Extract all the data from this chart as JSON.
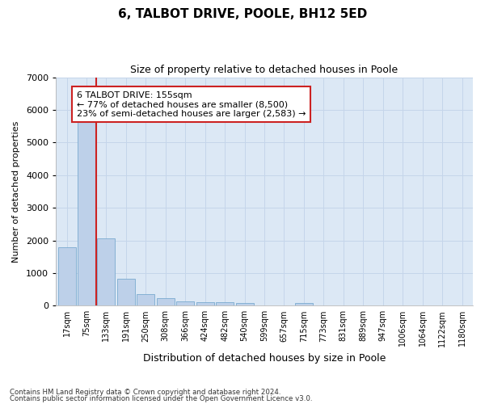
{
  "title": "6, TALBOT DRIVE, POOLE, BH12 5ED",
  "subtitle": "Size of property relative to detached houses in Poole",
  "xlabel": "Distribution of detached houses by size in Poole",
  "ylabel": "Number of detached properties",
  "categories": [
    "17sqm",
    "75sqm",
    "133sqm",
    "191sqm",
    "250sqm",
    "308sqm",
    "366sqm",
    "424sqm",
    "482sqm",
    "540sqm",
    "599sqm",
    "657sqm",
    "715sqm",
    "773sqm",
    "831sqm",
    "889sqm",
    "947sqm",
    "1006sqm",
    "1064sqm",
    "1122sqm",
    "1180sqm"
  ],
  "values": [
    1780,
    5750,
    2060,
    820,
    360,
    230,
    120,
    115,
    100,
    90,
    0,
    0,
    85,
    0,
    0,
    0,
    0,
    0,
    0,
    0,
    0
  ],
  "bar_color": "#bdd0e9",
  "bar_edge_color": "#7aaad0",
  "red_line_x": 1.5,
  "annotation_text": "6 TALBOT DRIVE: 155sqm\n← 77% of detached houses are smaller (8,500)\n23% of semi-detached houses are larger (2,583) →",
  "annotation_box_color": "white",
  "annotation_box_edge_color": "#cc2222",
  "red_line_color": "#cc2222",
  "ylim": [
    0,
    7000
  ],
  "yticks": [
    0,
    1000,
    2000,
    3000,
    4000,
    5000,
    6000,
    7000
  ],
  "grid_color": "#c5d5ea",
  "bg_color": "#dce8f5",
  "footnote1": "Contains HM Land Registry data © Crown copyright and database right 2024.",
  "footnote2": "Contains public sector information licensed under the Open Government Licence v3.0."
}
